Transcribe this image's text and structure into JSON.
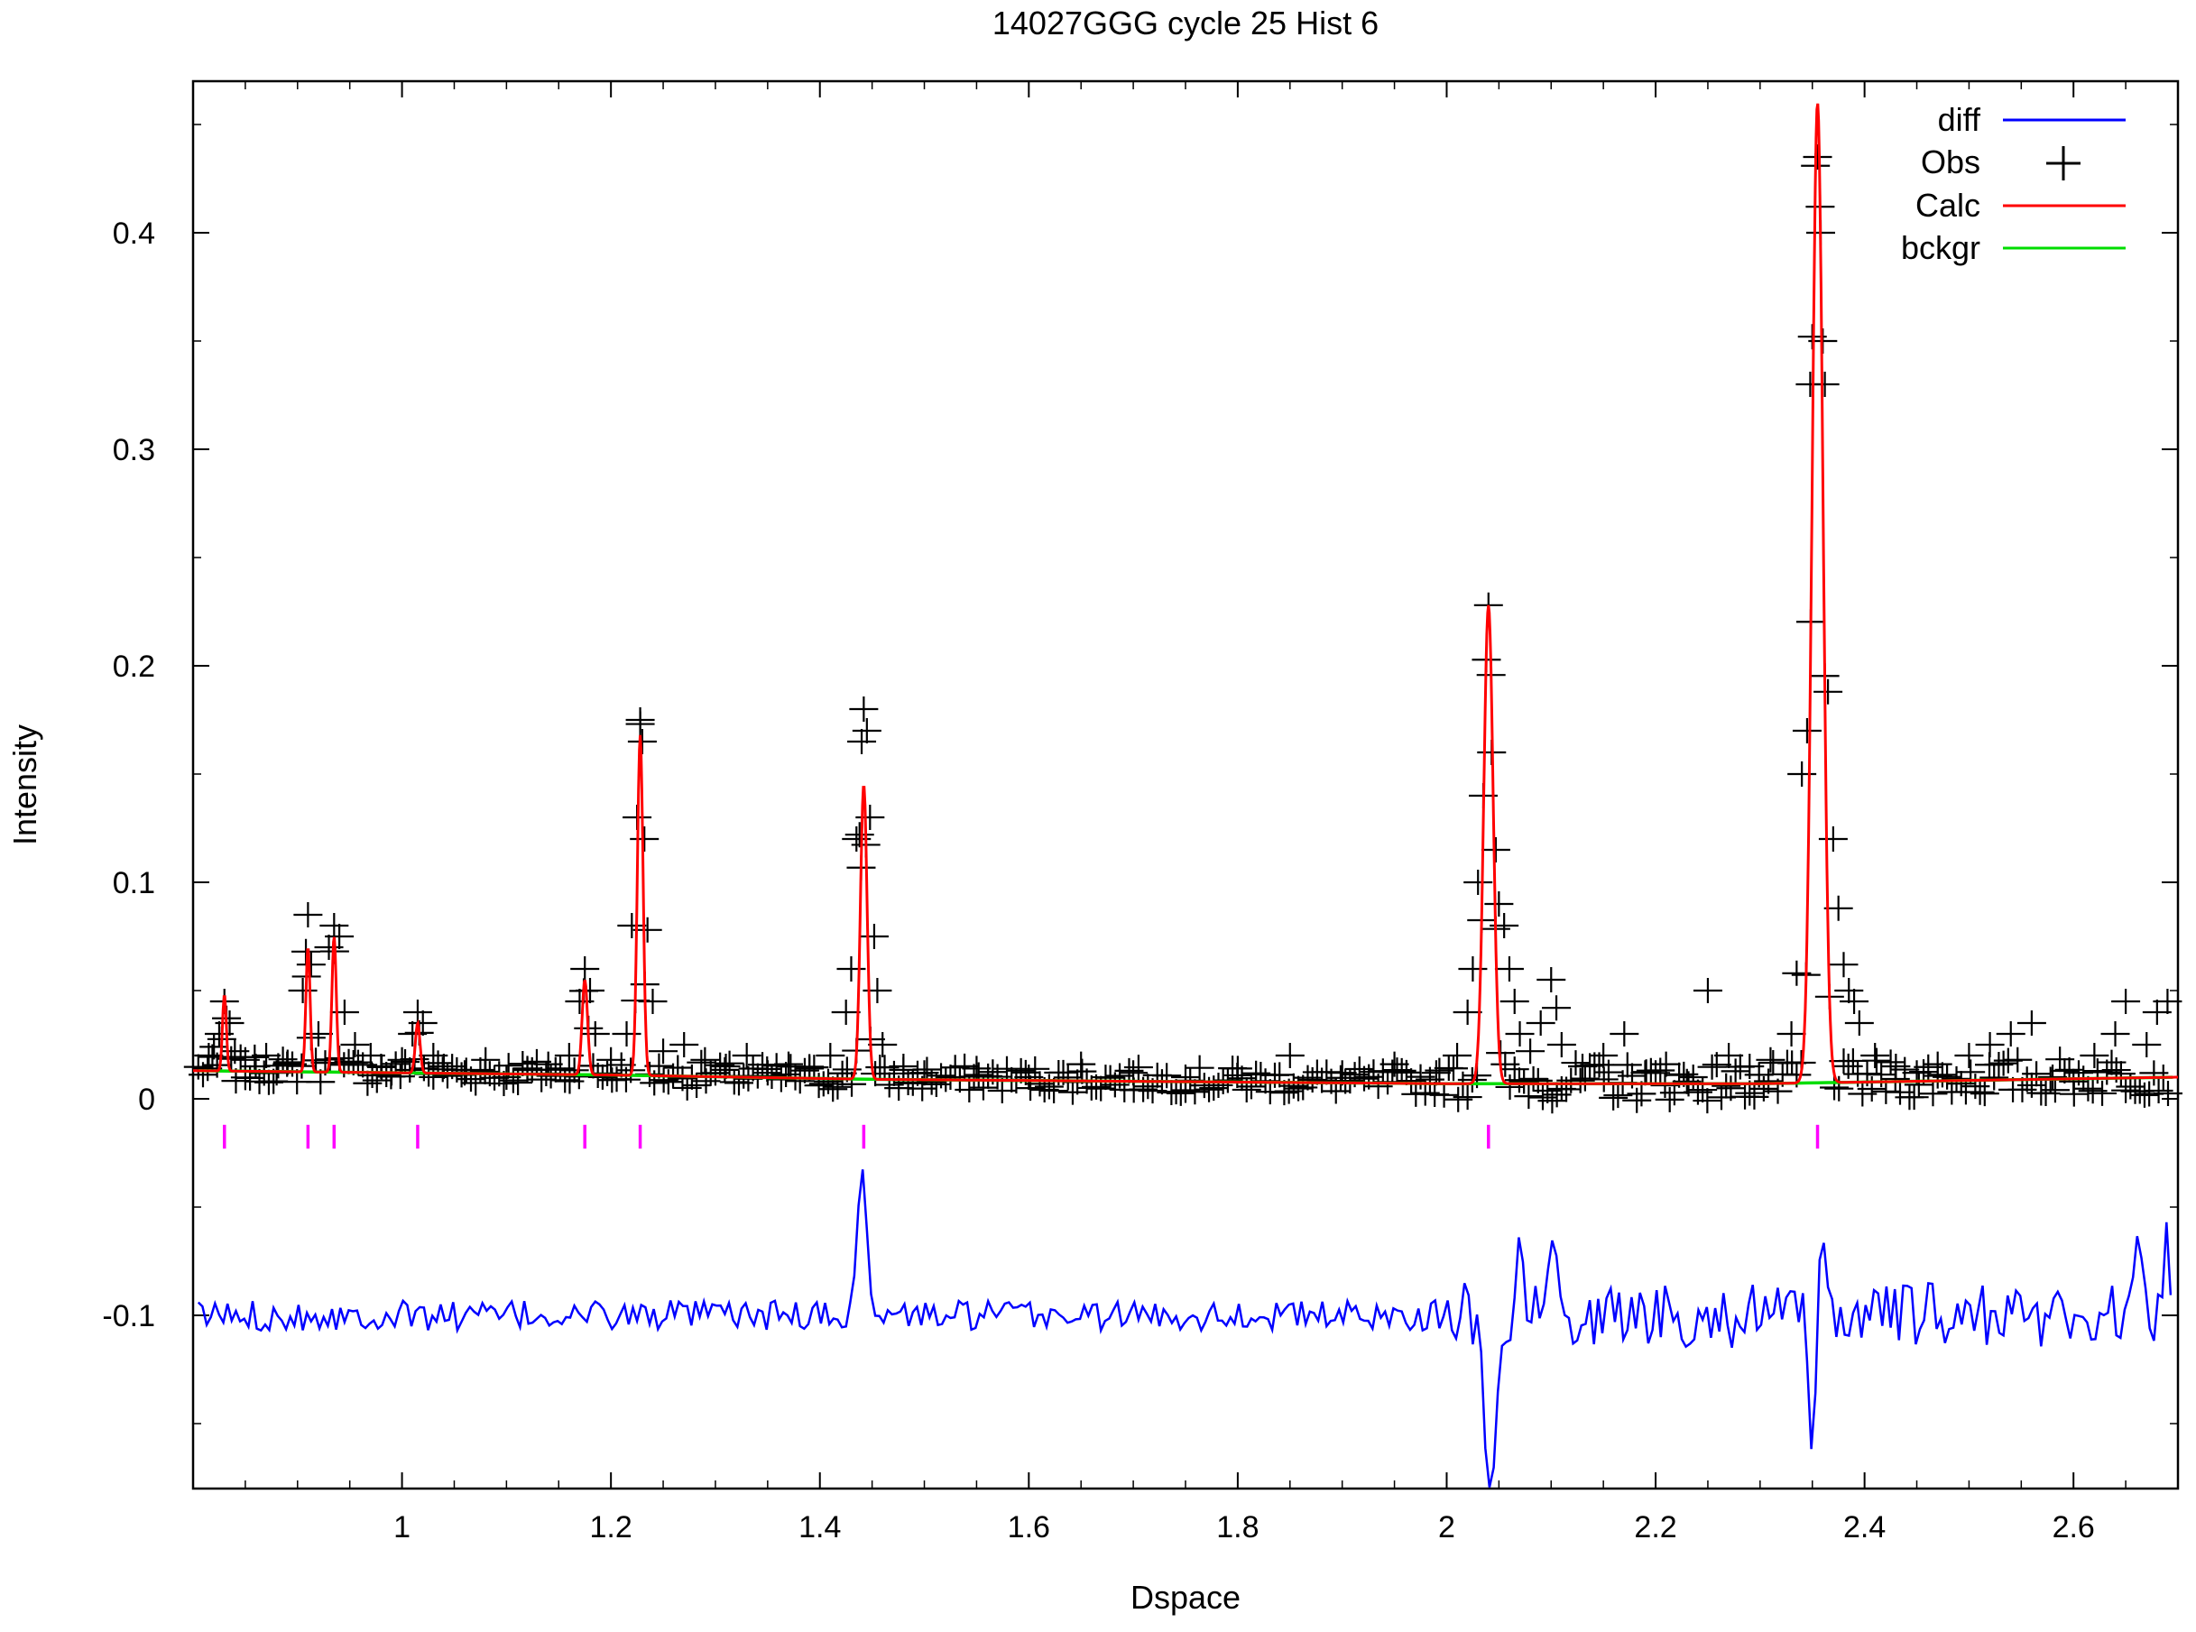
{
  "chart_data": {
    "type": "line",
    "title": "14027GGG cycle 25 Hist 6",
    "xlabel": "Dspace",
    "ylabel": "Intensity",
    "xlim": [
      0.8,
      2.7
    ],
    "ylim": [
      -0.18,
      0.47
    ],
    "x_ticks": [
      1,
      1.2,
      1.4,
      1.6,
      1.8,
      2,
      2.2,
      2.4,
      2.6
    ],
    "x_tick_labels": [
      "1",
      "1.2",
      "1.4",
      "1.6",
      "1.8",
      "2",
      "2.2",
      "2.4",
      "2.6"
    ],
    "y_ticks": [
      -0.1,
      0,
      0.1,
      0.2,
      0.3,
      0.4
    ],
    "y_tick_labels": [
      "-0.1",
      "0",
      "0.1",
      "0.2",
      "0.3",
      "0.4"
    ],
    "grid": false,
    "legend_position": "top-right",
    "legend": [
      "diff",
      "Obs",
      "Calc",
      "bckgr"
    ],
    "colors": {
      "diff": "#0000ff",
      "obs": "#000000",
      "calc": "#ff0000",
      "bckgr": "#00dd00",
      "reflections": "#ff00ff"
    },
    "background_line": {
      "x": [
        0.8,
        1.2,
        1.45,
        2.0,
        2.3,
        2.7
      ],
      "y": [
        0.013,
        0.011,
        0.009,
        0.007,
        0.007,
        0.01
      ]
    },
    "peaks": [
      {
        "d": 0.83,
        "intensity": 0.048
      },
      {
        "d": 0.91,
        "intensity": 0.07
      },
      {
        "d": 0.935,
        "intensity": 0.075
      },
      {
        "d": 1.015,
        "intensity": 0.035
      },
      {
        "d": 1.175,
        "intensity": 0.055
      },
      {
        "d": 1.228,
        "intensity": 0.168
      },
      {
        "d": 1.442,
        "intensity": 0.145
      },
      {
        "d": 2.04,
        "intensity": 0.228
      },
      {
        "d": 2.355,
        "intensity": 0.46
      }
    ],
    "reflection_ticks": [
      0.83,
      0.91,
      0.935,
      1.015,
      1.175,
      1.228,
      1.442,
      2.04,
      2.355
    ],
    "reflection_tick_y": [
      -0.012,
      -0.023
    ],
    "obs_points": [
      [
        0.815,
        0.02
      ],
      [
        0.82,
        0.024
      ],
      [
        0.825,
        0.03
      ],
      [
        0.83,
        0.045
      ],
      [
        0.835,
        0.035
      ],
      [
        0.84,
        0.022
      ],
      [
        0.85,
        0.018
      ],
      [
        0.86,
        0.015
      ],
      [
        0.87,
        0.02
      ],
      [
        0.88,
        0.012
      ],
      [
        0.89,
        0.016
      ],
      [
        0.905,
        0.05
      ],
      [
        0.908,
        0.068
      ],
      [
        0.91,
        0.085
      ],
      [
        0.913,
        0.062
      ],
      [
        0.92,
        0.03
      ],
      [
        0.93,
        0.07
      ],
      [
        0.935,
        0.08
      ],
      [
        0.94,
        0.075
      ],
      [
        0.945,
        0.04
      ],
      [
        0.955,
        0.025
      ],
      [
        0.97,
        0.02
      ],
      [
        0.98,
        0.015
      ],
      [
        0.99,
        0.012
      ],
      [
        1.0,
        0.018
      ],
      [
        1.01,
        0.03
      ],
      [
        1.015,
        0.04
      ],
      [
        1.02,
        0.035
      ],
      [
        1.03,
        0.02
      ],
      [
        1.04,
        0.015
      ],
      [
        1.06,
        0.012
      ],
      [
        1.08,
        0.018
      ],
      [
        1.1,
        0.01
      ],
      [
        1.12,
        0.014
      ],
      [
        1.14,
        0.016
      ],
      [
        1.16,
        0.02
      ],
      [
        1.17,
        0.045
      ],
      [
        1.175,
        0.06
      ],
      [
        1.18,
        0.05
      ],
      [
        1.185,
        0.03
      ],
      [
        1.2,
        0.018
      ],
      [
        1.215,
        0.03
      ],
      [
        1.22,
        0.08
      ],
      [
        1.225,
        0.13
      ],
      [
        1.228,
        0.175
      ],
      [
        1.23,
        0.165
      ],
      [
        1.232,
        0.12
      ],
      [
        1.235,
        0.078
      ],
      [
        1.24,
        0.045
      ],
      [
        1.25,
        0.022
      ],
      [
        1.27,
        0.025
      ],
      [
        1.29,
        0.018
      ],
      [
        1.31,
        0.015
      ],
      [
        1.33,
        0.02
      ],
      [
        1.35,
        0.012
      ],
      [
        1.37,
        0.016
      ],
      [
        1.39,
        0.014
      ],
      [
        1.41,
        0.02
      ],
      [
        1.425,
        0.04
      ],
      [
        1.43,
        0.06
      ],
      [
        1.435,
        0.12
      ],
      [
        1.438,
        0.122
      ],
      [
        1.44,
        0.165
      ],
      [
        1.442,
        0.18
      ],
      [
        1.445,
        0.17
      ],
      [
        1.448,
        0.13
      ],
      [
        1.452,
        0.075
      ],
      [
        1.455,
        0.05
      ],
      [
        1.46,
        0.025
      ],
      [
        1.48,
        0.015
      ],
      [
        1.5,
        0.012
      ],
      [
        1.55,
        0.014
      ],
      [
        1.6,
        0.01
      ],
      [
        1.65,
        0.016
      ],
      [
        1.7,
        0.012
      ],
      [
        1.75,
        0.01
      ],
      [
        1.8,
        0.014
      ],
      [
        1.85,
        0.02
      ],
      [
        1.9,
        0.012
      ],
      [
        1.95,
        0.016
      ],
      [
        1.99,
        0.012
      ],
      [
        2.01,
        0.02
      ],
      [
        2.02,
        0.04
      ],
      [
        2.025,
        0.06
      ],
      [
        2.03,
        0.1
      ],
      [
        2.035,
        0.14
      ],
      [
        2.04,
        0.228
      ],
      [
        2.043,
        0.16
      ],
      [
        2.047,
        0.115
      ],
      [
        2.05,
        0.09
      ],
      [
        2.055,
        0.08
      ],
      [
        2.06,
        0.06
      ],
      [
        2.065,
        0.045
      ],
      [
        2.07,
        0.03
      ],
      [
        2.08,
        0.022
      ],
      [
        2.09,
        0.035
      ],
      [
        2.1,
        0.055
      ],
      [
        2.105,
        0.042
      ],
      [
        2.11,
        0.025
      ],
      [
        2.13,
        0.015
      ],
      [
        2.15,
        0.02
      ],
      [
        2.17,
        0.03
      ],
      [
        2.19,
        0.012
      ],
      [
        2.21,
        0.016
      ],
      [
        2.23,
        0.008
      ],
      [
        2.25,
        0.05
      ],
      [
        2.27,
        0.02
      ],
      [
        2.29,
        0.015
      ],
      [
        2.31,
        0.018
      ],
      [
        2.33,
        0.03
      ],
      [
        2.335,
        0.058
      ],
      [
        2.34,
        0.15
      ],
      [
        2.345,
        0.17
      ],
      [
        2.348,
        0.33
      ],
      [
        2.35,
        0.352
      ],
      [
        2.355,
        0.435
      ],
      [
        2.358,
        0.4
      ],
      [
        2.36,
        0.35
      ],
      [
        2.362,
        0.33
      ],
      [
        2.365,
        0.188
      ],
      [
        2.37,
        0.12
      ],
      [
        2.375,
        0.088
      ],
      [
        2.38,
        0.062
      ],
      [
        2.385,
        0.05
      ],
      [
        2.39,
        0.045
      ],
      [
        2.395,
        0.035
      ],
      [
        2.41,
        0.02
      ],
      [
        2.43,
        0.015
      ],
      [
        2.45,
        0.012
      ],
      [
        2.47,
        0.016
      ],
      [
        2.5,
        0.02
      ],
      [
        2.52,
        0.025
      ],
      [
        2.54,
        0.03
      ],
      [
        2.56,
        0.035
      ],
      [
        2.58,
        0.01
      ],
      [
        2.6,
        0.008
      ],
      [
        2.62,
        0.02
      ],
      [
        2.64,
        0.03
      ],
      [
        2.65,
        0.045
      ],
      [
        2.67,
        0.025
      ],
      [
        2.68,
        0.04
      ],
      [
        2.69,
        0.045
      ]
    ],
    "diff_offset": -0.1,
    "diff_features": [
      {
        "d": 1.44,
        "value": -0.025
      },
      {
        "d": 2.04,
        "value": -0.165
      },
      {
        "d": 2.045,
        "value": -0.14
      },
      {
        "d": 2.07,
        "value": -0.065
      },
      {
        "d": 2.1,
        "value": -0.06
      },
      {
        "d": 2.35,
        "value": -0.155
      },
      {
        "d": 2.36,
        "value": -0.055
      },
      {
        "d": 2.66,
        "value": -0.065
      },
      {
        "d": 2.69,
        "value": -0.07
      }
    ]
  }
}
